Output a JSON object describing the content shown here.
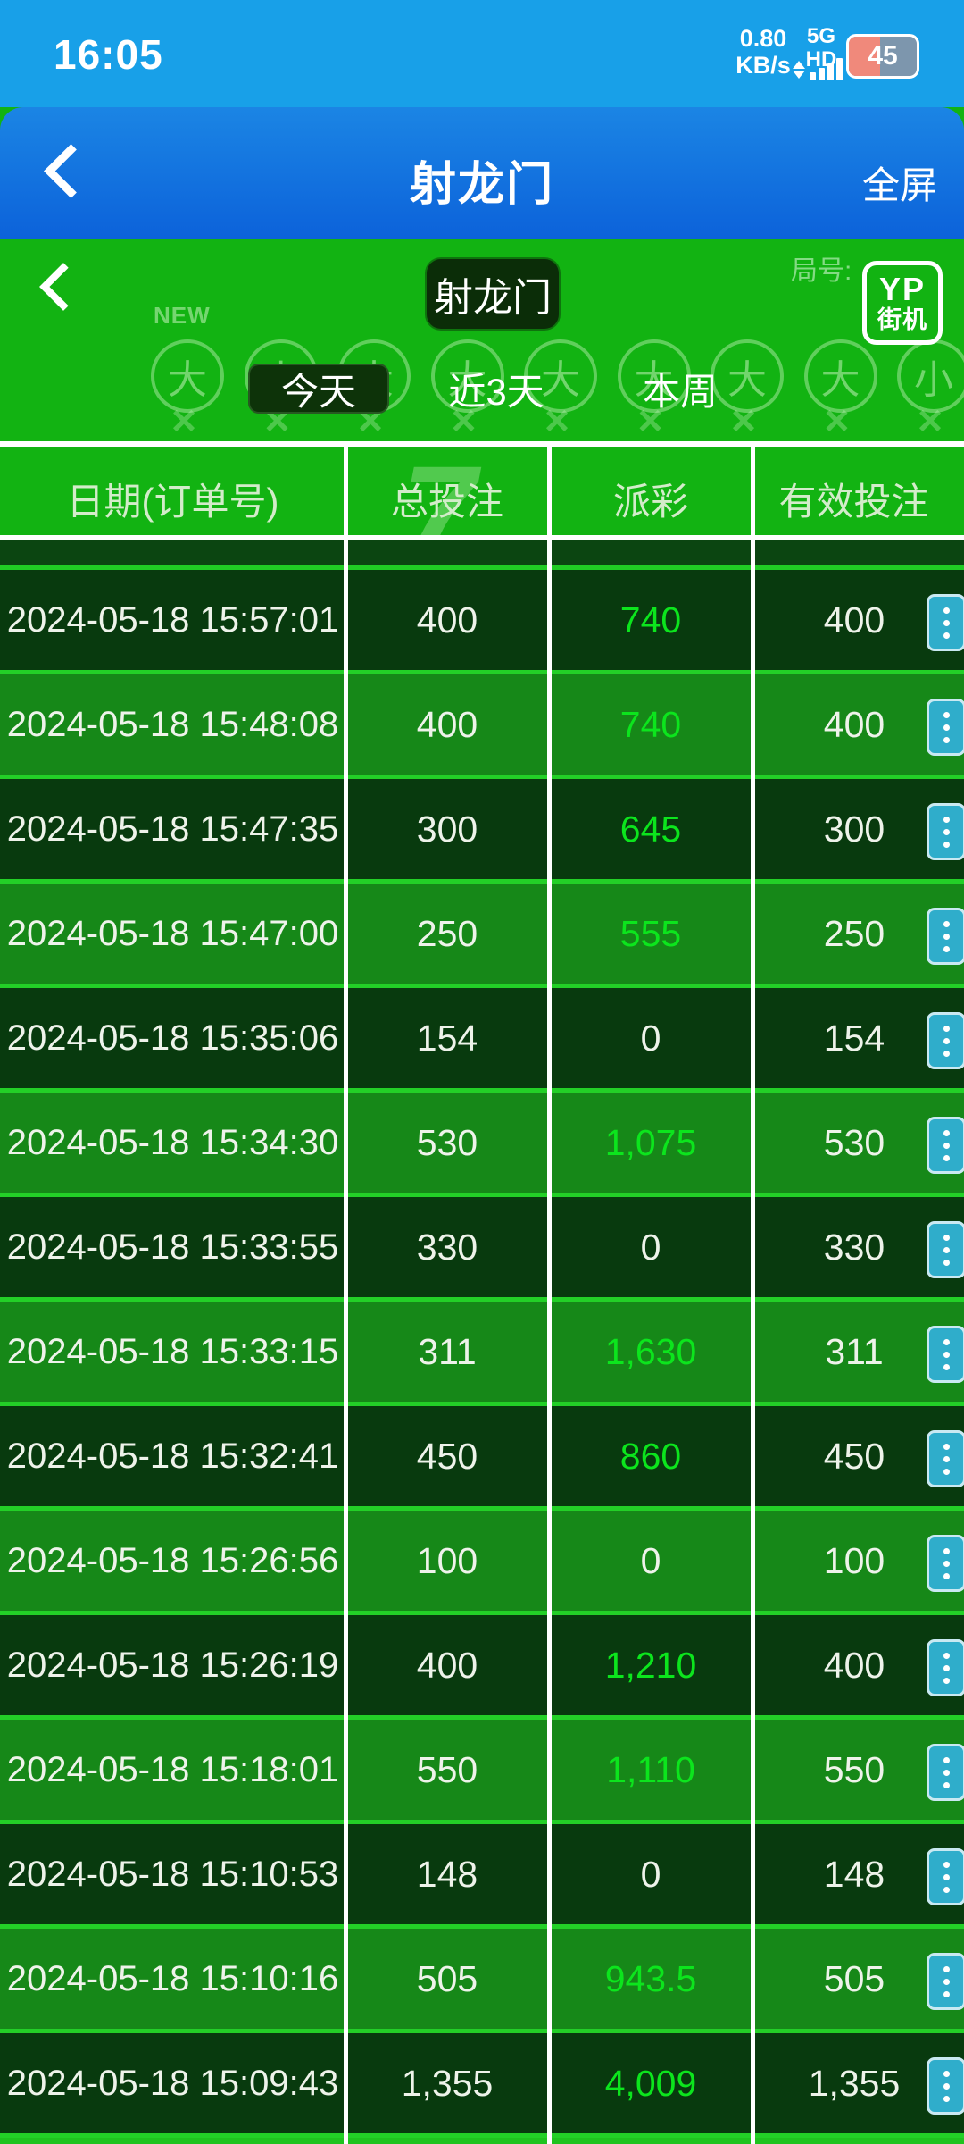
{
  "status_bar": {
    "time": "16:05",
    "net_speed_value": "0.80",
    "net_speed_unit": "KB/s",
    "network_label": "5G HD",
    "battery_percent": "45"
  },
  "nav_bar": {
    "title": "射龙门",
    "fullscreen_label": "全屏"
  },
  "game_header": {
    "pill_title": "射龙门",
    "logo_top": "YP",
    "logo_bottom": "街机",
    "round_label": "局号:",
    "new_badge": "NEW"
  },
  "tabs": [
    {
      "label": "今天",
      "active": true
    },
    {
      "label": "近3天",
      "active": false
    },
    {
      "label": "本周",
      "active": false
    }
  ],
  "table": {
    "headers": [
      "日期(订单号)",
      "总投注",
      "派彩",
      "有效投注"
    ],
    "watermark_digit": "7",
    "rows": [
      {
        "date": "2024-05-18 15:57:01",
        "total_bet": "400",
        "payout": "740",
        "valid_bet": "400"
      },
      {
        "date": "2024-05-18 15:48:08",
        "total_bet": "400",
        "payout": "740",
        "valid_bet": "400"
      },
      {
        "date": "2024-05-18 15:47:35",
        "total_bet": "300",
        "payout": "645",
        "valid_bet": "300"
      },
      {
        "date": "2024-05-18 15:47:00",
        "total_bet": "250",
        "payout": "555",
        "valid_bet": "250"
      },
      {
        "date": "2024-05-18 15:35:06",
        "total_bet": "154",
        "payout": "0",
        "valid_bet": "154"
      },
      {
        "date": "2024-05-18 15:34:30",
        "total_bet": "530",
        "payout": "1,075",
        "valid_bet": "530"
      },
      {
        "date": "2024-05-18 15:33:55",
        "total_bet": "330",
        "payout": "0",
        "valid_bet": "330"
      },
      {
        "date": "2024-05-18 15:33:15",
        "total_bet": "311",
        "payout": "1,630",
        "valid_bet": "311"
      },
      {
        "date": "2024-05-18 15:32:41",
        "total_bet": "450",
        "payout": "860",
        "valid_bet": "450"
      },
      {
        "date": "2024-05-18 15:26:56",
        "total_bet": "100",
        "payout": "0",
        "valid_bet": "100"
      },
      {
        "date": "2024-05-18 15:26:19",
        "total_bet": "400",
        "payout": "1,210",
        "valid_bet": "400"
      },
      {
        "date": "2024-05-18 15:18:01",
        "total_bet": "550",
        "payout": "1,110",
        "valid_bet": "550"
      },
      {
        "date": "2024-05-18 15:10:53",
        "total_bet": "148",
        "payout": "0",
        "valid_bet": "148"
      },
      {
        "date": "2024-05-18 15:10:16",
        "total_bet": "505",
        "payout": "943.5",
        "valid_bet": "505"
      },
      {
        "date": "2024-05-18 15:09:43",
        "total_bet": "1,355",
        "payout": "4,009",
        "valid_bet": "1,355"
      }
    ]
  },
  "decor": {
    "circles": [
      "大",
      "小",
      "大",
      "大",
      "大",
      "大",
      "大",
      "大",
      "小"
    ],
    "cross": "×"
  },
  "colors": {
    "status_blue": "#18a0e8",
    "nav_blue": "#0c62da",
    "page_green": "#12b312",
    "row_dark": "#083a0e",
    "row_light": "#168818",
    "payout_green": "#0ce51d",
    "action_teal": "#2fadcb"
  }
}
